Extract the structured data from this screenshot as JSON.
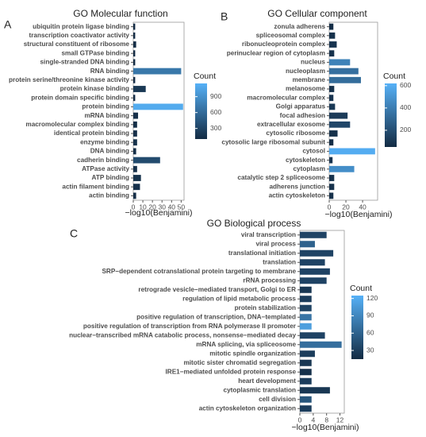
{
  "chart_data": [
    {
      "type": "bar",
      "orientation": "horizontal",
      "panel": "A",
      "title": "GO Molecular function",
      "categories": [
        "ubiquitin protein ligase binding",
        "transcription coactivator activity",
        "structural constituent of ribosome",
        "small GTPase binding",
        "single-stranded DNA binding",
        "RNA binding",
        "protein serine/threonine kinase activity",
        "protein kinase binding",
        "protein domain specific binding",
        "protein binding",
        "mRNA binding",
        "macromolecular complex binding",
        "identical protein binding",
        "enzyme binding",
        "DNA binding",
        "cadherin binding",
        "ATPase activity",
        "ATP binding",
        "actin filament binding",
        "actin binding"
      ],
      "values": [
        2,
        2,
        3,
        2,
        2,
        50,
        2,
        13,
        2,
        52,
        5,
        4,
        4,
        4,
        3,
        28,
        4,
        8,
        7,
        3
      ],
      "counts": [
        110,
        110,
        120,
        110,
        110,
        700,
        110,
        200,
        110,
        1100,
        140,
        130,
        140,
        160,
        130,
        350,
        140,
        160,
        150,
        130
      ],
      "xlabel": "−log10(Benjamini)",
      "xlim": [
        0,
        53
      ],
      "xticks": [
        0,
        10,
        20,
        30,
        40,
        50
      ],
      "legend_title": "Count",
      "clim": [
        100,
        1150
      ],
      "cticks": [
        300,
        600,
        900
      ],
      "color_low": "#132B43",
      "color_high": "#56B1F7"
    },
    {
      "type": "bar",
      "orientation": "horizontal",
      "panel": "B",
      "title": "GO Cellular component",
      "categories": [
        "zonula adherens",
        "spliceosomal complex",
        "ribonucleoprotein complex",
        "perinuclear region of cytoplasm",
        "nucleus",
        "nucleoplasm",
        "membrane",
        "melanosome",
        "macromolecular complex",
        "Golgi apparatus",
        "focal adhesion",
        "extracellular exosome",
        "cytosolic ribosome",
        "cytosolic large ribosomal subunit",
        "cytosol",
        "cytoskeleton",
        "cytoplasm",
        "catalytic step 2 spliceosome",
        "adherens junction",
        "actin cytoskeleton"
      ],
      "values": [
        5,
        7,
        9,
        6,
        25,
        35,
        38,
        6,
        5,
        7,
        22,
        25,
        10,
        5,
        55,
        4,
        30,
        6,
        6,
        5
      ],
      "counts": [
        60,
        80,
        90,
        80,
        420,
        340,
        330,
        80,
        90,
        110,
        120,
        170,
        80,
        60,
        600,
        90,
        470,
        80,
        80,
        80
      ],
      "xlabel": "−log10(Benjamini)",
      "xlim": [
        0,
        58
      ],
      "xticks": [
        0,
        20,
        40
      ],
      "legend_title": "Count",
      "clim": [
        50,
        620
      ],
      "cticks": [
        200,
        400,
        600
      ],
      "color_low": "#132B43",
      "color_high": "#56B1F7"
    },
    {
      "type": "bar",
      "orientation": "horizontal",
      "panel": "C",
      "title": "GO Biological process",
      "categories": [
        "viral transcription",
        "viral process",
        "translational initiation",
        "translation",
        "SRP−dependent cotranslational protein targeting to membrane",
        "rRNA processing",
        "retrograde vesicle−mediated transport, Golgi to ER",
        "regulation of lipid metabolic process",
        "protein stabilization",
        "positive regulation of transcription, DNA−templated",
        "positive regulation of transcription from RNA polymerase II promoter",
        "nuclear−transcribed mRNA catabolic process, nonsense−mediated decay",
        "mRNA splicing, via spliceosome",
        "mitotic spindle organization",
        "mitotic sister chromatid segregation",
        "IRE1−mediated unfolded protein response",
        "heart development",
        "cytoplasmic translation",
        "cell division",
        "actin cytoskeleton organization"
      ],
      "values": [
        8,
        4.5,
        10,
        7.5,
        9,
        8,
        3.5,
        3.5,
        3.5,
        3.5,
        3.5,
        7.5,
        12.5,
        4.5,
        3.5,
        3.5,
        3.5,
        9,
        3.5,
        3.5
      ],
      "counts": [
        35,
        60,
        35,
        35,
        35,
        35,
        25,
        30,
        35,
        75,
        110,
        35,
        70,
        30,
        25,
        20,
        30,
        25,
        50,
        30
      ],
      "xlabel": "−log10(Benjamini)",
      "xlim": [
        0,
        13.3
      ],
      "xticks": [
        0,
        4,
        8,
        12
      ],
      "legend_title": "Count",
      "clim": [
        15,
        125
      ],
      "cticks": [
        30,
        60,
        90,
        120
      ],
      "color_low": "#132B43",
      "color_high": "#56B1F7"
    }
  ]
}
